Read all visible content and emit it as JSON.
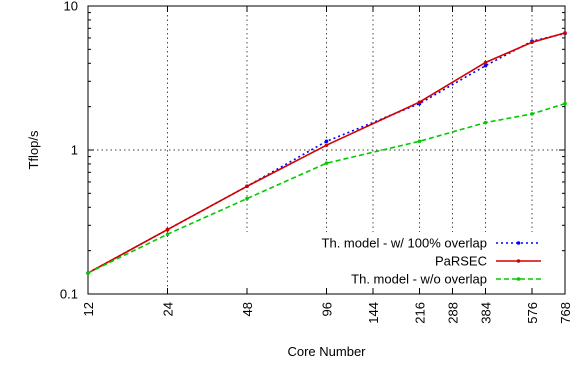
{
  "chart_data": {
    "type": "line",
    "title": "",
    "xlabel": "Core Number",
    "ylabel": "Tflop/s",
    "x_scale": "log",
    "y_scale": "log",
    "xlim": [
      12,
      768
    ],
    "ylim": [
      0.1,
      10
    ],
    "x_ticks": [
      12,
      24,
      48,
      96,
      144,
      216,
      288,
      384,
      576,
      768
    ],
    "y_ticks": [
      0.1,
      1,
      10
    ],
    "grid": true,
    "legend_position": "bottom-right",
    "series": [
      {
        "name": "Th. model - w/ 100% overlap",
        "color": "#0000ff",
        "line_style": "dotted",
        "x": [
          12,
          24,
          48,
          96,
          216,
          384,
          576,
          768
        ],
        "y": [
          0.14,
          0.28,
          0.56,
          1.15,
          2.1,
          3.85,
          5.7,
          6.45
        ]
      },
      {
        "name": "PaRSEC",
        "color": "#d40000",
        "line_style": "solid",
        "x": [
          12,
          24,
          48,
          96,
          216,
          384,
          576,
          768
        ],
        "y": [
          0.14,
          0.28,
          0.56,
          1.08,
          2.15,
          4.05,
          5.6,
          6.5
        ]
      },
      {
        "name": "Th. model - w/o overlap",
        "color": "#00cc00",
        "line_style": "dashed",
        "x": [
          12,
          24,
          48,
          96,
          216,
          384,
          576,
          768
        ],
        "y": [
          0.14,
          0.26,
          0.46,
          0.81,
          1.15,
          1.55,
          1.78,
          2.1
        ]
      }
    ]
  }
}
